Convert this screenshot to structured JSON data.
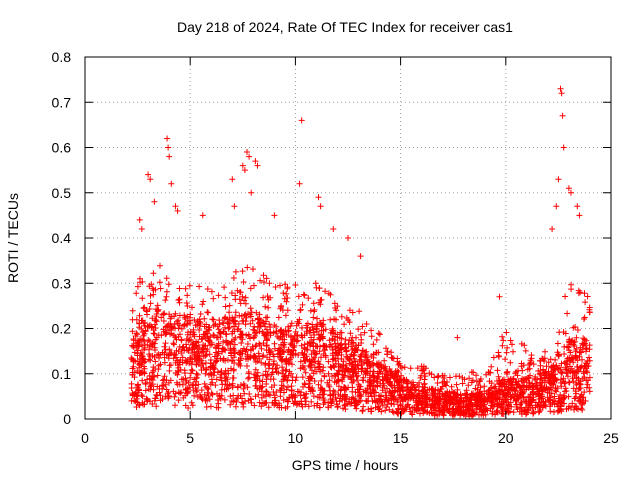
{
  "chart_data": {
    "type": "scatter",
    "title": "Day 218 of 2024, Rate Of TEC Index for receiver cas1",
    "xlabel": "GPS time / hours",
    "ylabel": "ROTI / TECUs",
    "xlim": [
      0,
      25
    ],
    "ylim": [
      0,
      0.8
    ],
    "x_ticks": [
      0,
      5,
      10,
      15,
      20,
      25
    ],
    "x_tick_labels": [
      "0",
      "5",
      "10",
      "15",
      "20",
      "25"
    ],
    "y_ticks": [
      0,
      0.1,
      0.2,
      0.3,
      0.4,
      0.5,
      0.6,
      0.7,
      0.8
    ],
    "y_tick_labels": [
      "0",
      "0.1",
      "0.2",
      "0.3",
      "0.4",
      "0.5",
      "0.6",
      "0.7",
      "0.8"
    ],
    "grid": true,
    "marker": "+",
    "marker_color": "#ff0000",
    "series": [
      {
        "name": "ROTI",
        "points_note": "dense scatter of ~5000 points from 2.2 h to 24 h",
        "envelope": {
          "x": [
            2.2,
            3,
            4,
            5,
            6,
            7,
            8,
            9,
            10,
            11,
            12,
            13,
            14,
            15,
            16,
            17,
            18,
            19,
            20,
            21,
            22,
            23,
            24
          ],
          "upper": [
            0.27,
            0.35,
            0.33,
            0.3,
            0.3,
            0.33,
            0.34,
            0.3,
            0.3,
            0.31,
            0.28,
            0.24,
            0.2,
            0.13,
            0.12,
            0.1,
            0.1,
            0.11,
            0.2,
            0.16,
            0.15,
            0.3,
            0.28
          ],
          "typical": [
            0.1,
            0.14,
            0.13,
            0.12,
            0.12,
            0.13,
            0.13,
            0.11,
            0.12,
            0.12,
            0.11,
            0.09,
            0.07,
            0.05,
            0.04,
            0.035,
            0.03,
            0.035,
            0.05,
            0.05,
            0.06,
            0.1,
            0.1
          ]
        },
        "outliers": [
          [
            3.0,
            0.54
          ],
          [
            3.1,
            0.53
          ],
          [
            2.6,
            0.44
          ],
          [
            2.7,
            0.42
          ],
          [
            3.3,
            0.48
          ],
          [
            3.9,
            0.62
          ],
          [
            3.95,
            0.6
          ],
          [
            4.0,
            0.58
          ],
          [
            4.1,
            0.52
          ],
          [
            4.3,
            0.47
          ],
          [
            4.4,
            0.46
          ],
          [
            5.6,
            0.45
          ],
          [
            7.0,
            0.53
          ],
          [
            7.1,
            0.47
          ],
          [
            7.5,
            0.56
          ],
          [
            7.6,
            0.55
          ],
          [
            7.7,
            0.59
          ],
          [
            7.8,
            0.58
          ],
          [
            7.9,
            0.5
          ],
          [
            8.1,
            0.57
          ],
          [
            8.2,
            0.56
          ],
          [
            9.0,
            0.45
          ],
          [
            10.2,
            0.52
          ],
          [
            10.3,
            0.66
          ],
          [
            11.1,
            0.49
          ],
          [
            11.2,
            0.47
          ],
          [
            11.8,
            0.42
          ],
          [
            12.5,
            0.4
          ],
          [
            13.1,
            0.36
          ],
          [
            17.7,
            0.18
          ],
          [
            19.7,
            0.27
          ],
          [
            22.2,
            0.42
          ],
          [
            22.4,
            0.47
          ],
          [
            22.5,
            0.53
          ],
          [
            22.6,
            0.73
          ],
          [
            22.65,
            0.72
          ],
          [
            22.7,
            0.67
          ],
          [
            22.75,
            0.6
          ],
          [
            23.0,
            0.51
          ],
          [
            23.1,
            0.5
          ],
          [
            23.4,
            0.47
          ],
          [
            23.5,
            0.45
          ]
        ]
      }
    ]
  }
}
